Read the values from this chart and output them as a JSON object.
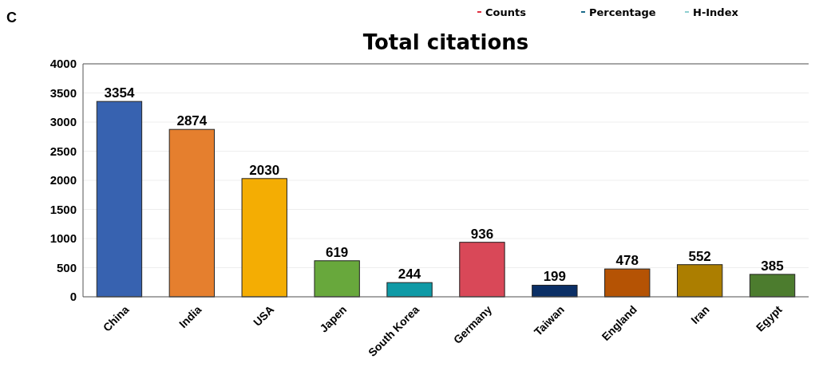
{
  "chart_data": {
    "type": "bar",
    "title": "Total citations",
    "categories": [
      "China",
      "India",
      "USA",
      "Japen",
      "South Korea",
      "Germany",
      "Taiwan",
      "England",
      "Iran",
      "Egypt"
    ],
    "values": [
      3354,
      2874,
      2030,
      619,
      244,
      936,
      199,
      478,
      552,
      385
    ],
    "colors": [
      "#3762b0",
      "#e57f2e",
      "#f4ad03",
      "#68a83c",
      "#0f9aa6",
      "#d94858",
      "#0b2f66",
      "#b55304",
      "#ac7e00",
      "#4c7c2e"
    ],
    "ylim": [
      0,
      4000
    ],
    "yticks": [
      0,
      500,
      1000,
      1500,
      2000,
      2500,
      3000,
      3500,
      4000
    ],
    "grid": "y",
    "data_labels": true,
    "annotations": [
      "C",
      "Counts",
      "Percentage",
      "H-Index"
    ]
  }
}
